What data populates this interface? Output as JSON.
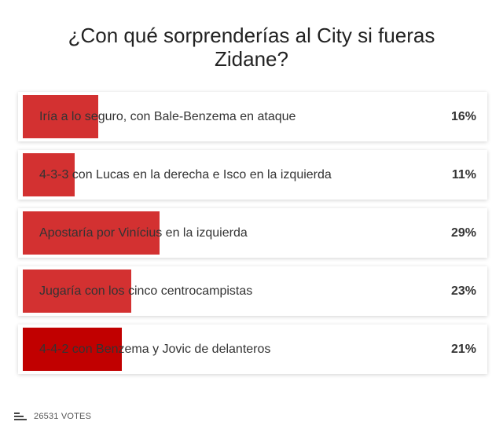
{
  "poll": {
    "title": "¿Con qué sorprenderías al City si fueras Zidane?",
    "accent_color": "#d33131",
    "options": [
      {
        "label": "Iría a lo seguro, con Bale-Benzema en ataque",
        "percent_label": "16%",
        "value": 16
      },
      {
        "label": "4-3-3 con Lucas en la derecha e Isco en la izquierda",
        "percent_label": "11%",
        "value": 11
      },
      {
        "label": "Apostaría por Vinícius en la izquierda",
        "percent_label": "29%",
        "value": 29
      },
      {
        "label": "Jugaría con los cinco centrocampistas",
        "percent_label": "23%",
        "value": 23
      },
      {
        "label": "4-4-2 con Benzema y Jovic de delanteros",
        "percent_label": "21%",
        "value": 21,
        "fill_color": "#c10000"
      }
    ]
  },
  "footer": {
    "votes_icon": "bar-chart-icon",
    "votes_text": "26531 VOTES"
  }
}
